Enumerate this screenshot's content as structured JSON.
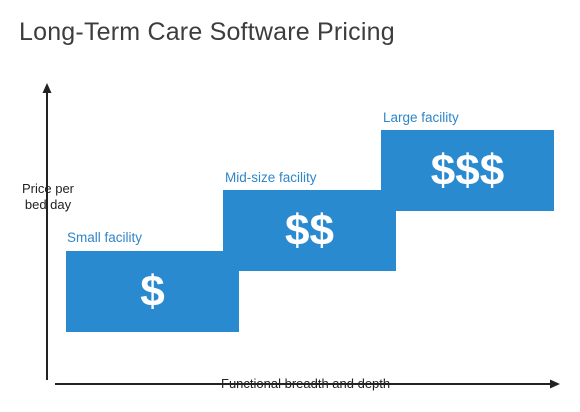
{
  "title": "Long-Term Care Software Pricing",
  "y_axis_label": "Price per bed day",
  "x_axis_label": "Functional breadth and depth",
  "colors": {
    "box": "#2a8ad0",
    "label": "#2f86c8",
    "axis": "#222222"
  },
  "tiers": [
    {
      "label": "Small facility",
      "price": "$"
    },
    {
      "label": "Mid-size facility",
      "price": "$$"
    },
    {
      "label": "Large facility",
      "price": "$$$"
    }
  ]
}
